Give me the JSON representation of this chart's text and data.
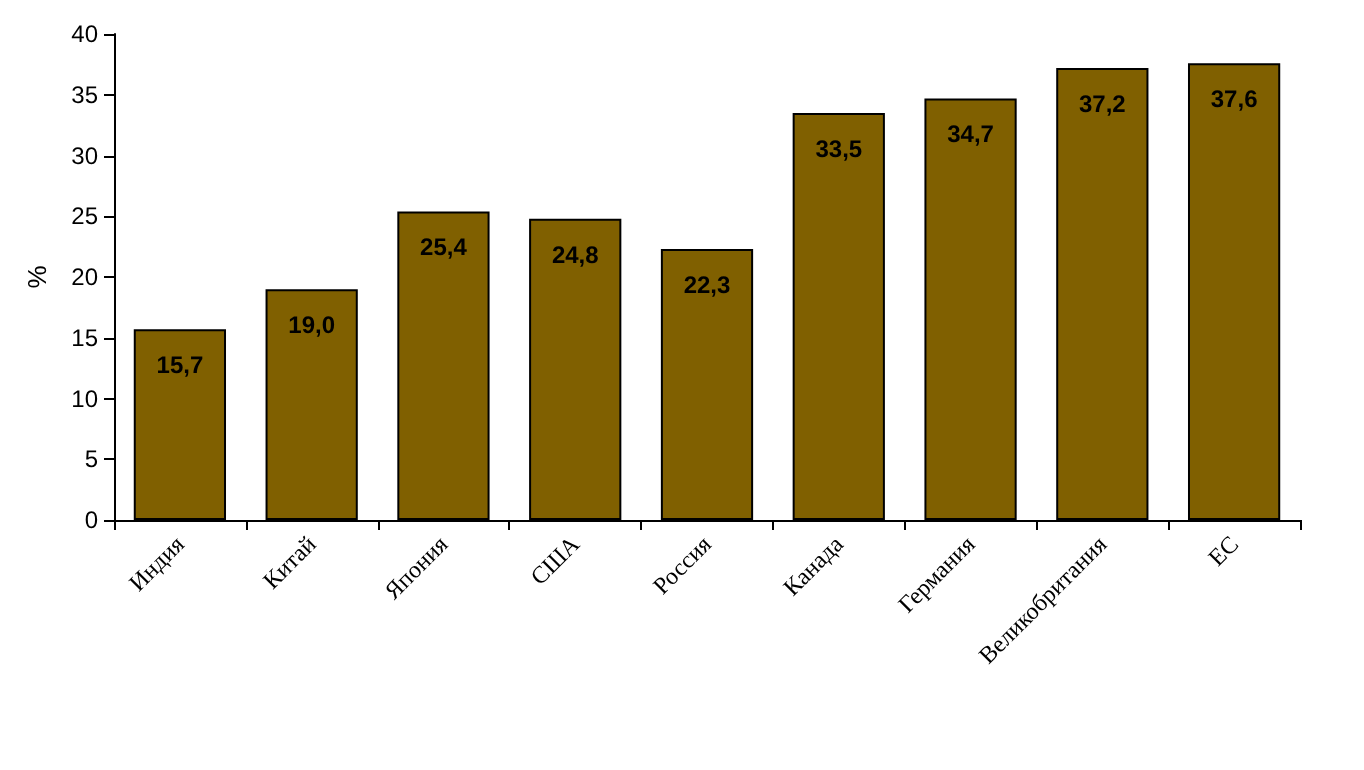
{
  "chart_data": {
    "type": "bar",
    "ylabel": "%",
    "categories": [
      "Индия",
      "Китай",
      "Япония",
      "США",
      "Россия",
      "Канада",
      "Германия",
      "Великобритания",
      "ЕС"
    ],
    "values": [
      15.7,
      19.0,
      25.4,
      24.8,
      22.3,
      33.5,
      34.7,
      37.2,
      37.6
    ],
    "value_labels": [
      "15,7",
      "19,0",
      "25,4",
      "24,8",
      "22,3",
      "33,5",
      "34,7",
      "37,2",
      "37,6"
    ],
    "color": "#806000",
    "ylim": [
      0,
      40
    ],
    "yticks": [
      0,
      5,
      10,
      15,
      20,
      25,
      30,
      35,
      40
    ]
  }
}
